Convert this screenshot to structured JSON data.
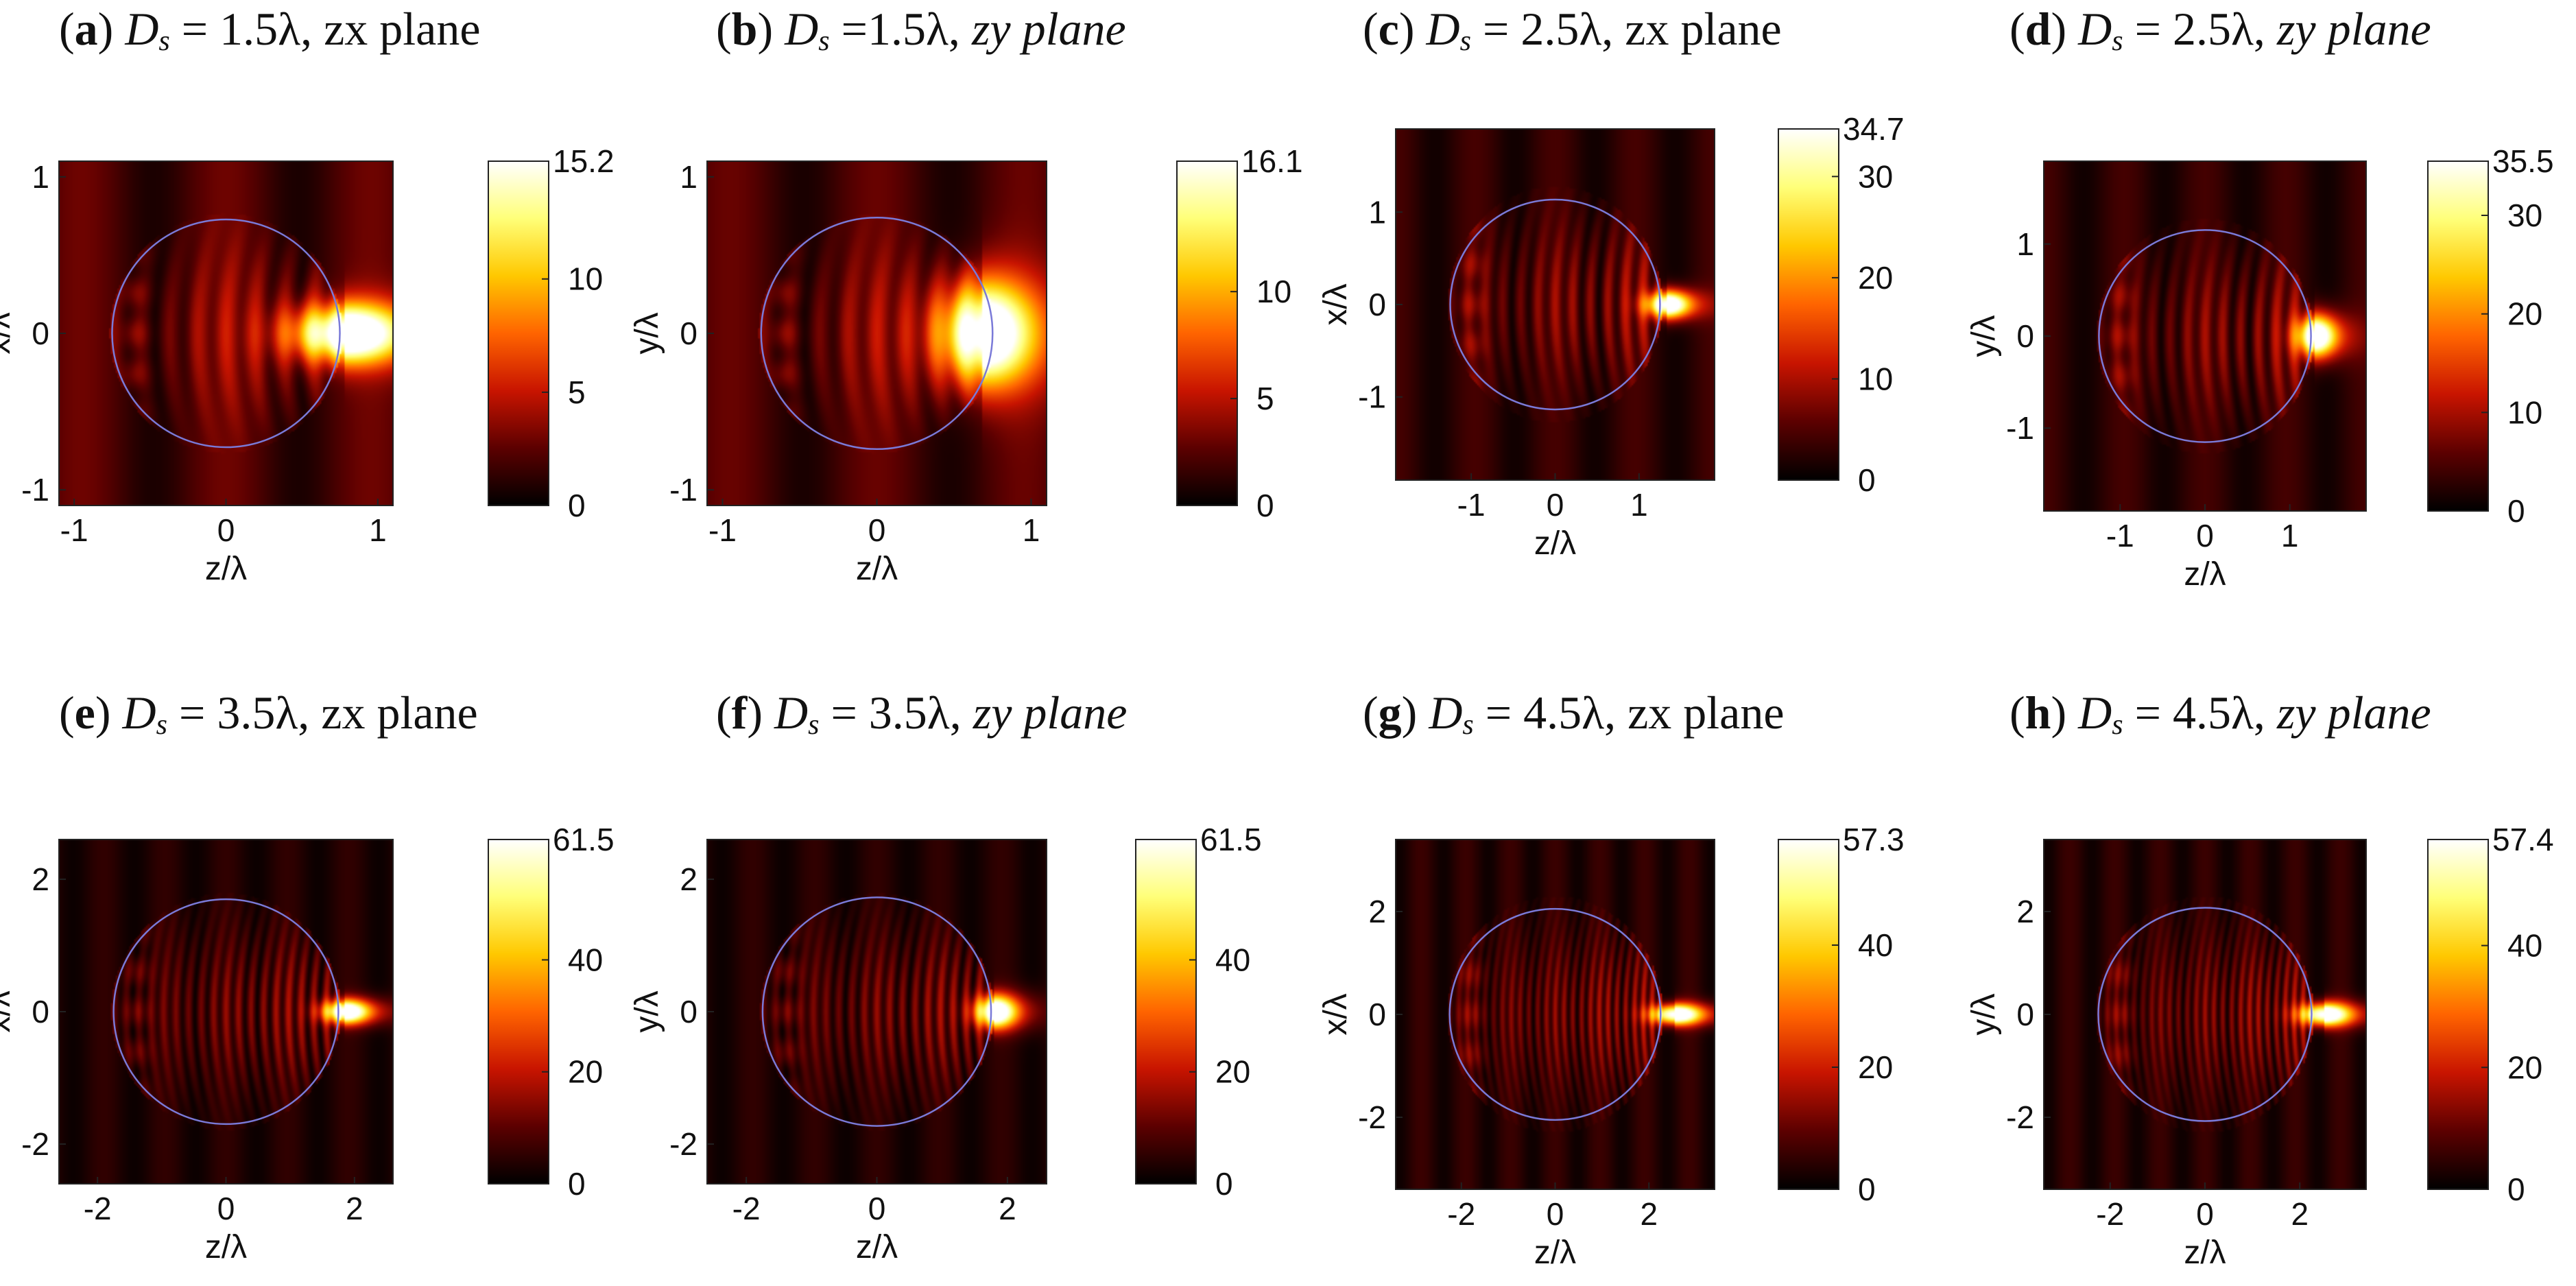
{
  "colormap": [
    "#000000",
    "#5c0000",
    "#c81400",
    "#ff6400",
    "#ffc800",
    "#ffff78",
    "#ffffff"
  ],
  "circle_color": "#7a7ad8",
  "chart_data": [
    {
      "id": "a",
      "type": "heatmap",
      "title": {
        "letter": "a",
        "ds_value": "= 1.5λ,",
        "plane": "zx plane",
        "italic_plane": false
      },
      "xlabel": "z/λ",
      "ylabel": "x/λ",
      "xlim": [
        -1.1,
        1.1
      ],
      "ylim": [
        -1.1,
        1.1
      ],
      "xticks": [
        -1,
        0,
        1
      ],
      "xtick_labels": [
        "-1",
        "0",
        "1"
      ],
      "yticks": [
        -1,
        0,
        1
      ],
      "ytick_labels": [
        "-1",
        "0",
        "1"
      ],
      "sphere_radius": 0.75,
      "colorbar": {
        "min": 0,
        "max": 15.2,
        "ticks": [
          0,
          5,
          10
        ],
        "tick_labels": [
          "0",
          "5",
          "10"
        ],
        "max_label": "15.2"
      },
      "field": {
        "focus_z": 0.78,
        "focus_peak": 15.2,
        "focus_wz": 0.34,
        "focus_wx": 0.17,
        "fringe_count": 4,
        "background": 2.2
      }
    },
    {
      "id": "b",
      "type": "heatmap",
      "title": {
        "letter": "b",
        "ds_value": "=1.5λ,",
        "plane": "zy plane",
        "italic_plane": true
      },
      "xlabel": "z/λ",
      "ylabel": "y/λ",
      "xlim": [
        -1.1,
        1.1
      ],
      "ylim": [
        -1.1,
        1.1
      ],
      "xticks": [
        -1,
        0,
        1
      ],
      "xtick_labels": [
        "-1",
        "0",
        "1"
      ],
      "yticks": [
        -1,
        0,
        1
      ],
      "ytick_labels": [
        "-1",
        "0",
        "1"
      ],
      "sphere_radius": 0.75,
      "colorbar": {
        "min": 0,
        "max": 16.1,
        "ticks": [
          0,
          5,
          10
        ],
        "tick_labels": [
          "0",
          "5",
          "10"
        ],
        "max_label": "16.1"
      },
      "field": {
        "focus_z": 0.68,
        "focus_peak": 16.1,
        "focus_wz": 0.28,
        "focus_wx": 0.3,
        "fringe_count": 4,
        "background": 2.2
      }
    },
    {
      "id": "c",
      "type": "heatmap",
      "title": {
        "letter": "c",
        "ds_value": "= 2.5λ,",
        "plane": "zx plane",
        "italic_plane": false
      },
      "xlabel": "z/λ",
      "ylabel": "x/λ",
      "xlim": [
        -1.9,
        1.9
      ],
      "ylim": [
        -1.9,
        1.9
      ],
      "xticks": [
        -1,
        0,
        1
      ],
      "xtick_labels": [
        "-1",
        "0",
        "1"
      ],
      "yticks": [
        -1,
        0,
        1
      ],
      "ytick_labels": [
        "-1",
        "0",
        "1"
      ],
      "sphere_radius": 1.25,
      "colorbar": {
        "min": 0,
        "max": 34.7,
        "ticks": [
          0,
          10,
          20,
          30
        ],
        "tick_labels": [
          "0",
          "10",
          "20",
          "30"
        ],
        "max_label": "34.7"
      },
      "field": {
        "focus_z": 1.33,
        "focus_peak": 34.7,
        "focus_wz": 0.24,
        "focus_wx": 0.13,
        "fringe_count": 6,
        "background": 3.0
      }
    },
    {
      "id": "d",
      "type": "heatmap",
      "title": {
        "letter": "d",
        "ds_value": "= 2.5λ,",
        "plane": "zy plane",
        "italic_plane": true
      },
      "xlabel": "z/λ",
      "ylabel": "y/λ",
      "xlim": [
        -1.9,
        1.9
      ],
      "ylim": [
        -1.9,
        1.9
      ],
      "xticks": [
        -1,
        0,
        1
      ],
      "xtick_labels": [
        "-1",
        "0",
        "1"
      ],
      "yticks": [
        -1,
        0,
        1
      ],
      "ytick_labels": [
        "-1",
        "0",
        "1"
      ],
      "sphere_radius": 1.25,
      "colorbar": {
        "min": 0,
        "max": 35.5,
        "ticks": [
          0,
          10,
          20,
          30
        ],
        "tick_labels": [
          "0",
          "10",
          "20",
          "30"
        ],
        "max_label": "35.5"
      },
      "field": {
        "focus_z": 1.3,
        "focus_peak": 35.5,
        "focus_wz": 0.22,
        "focus_wx": 0.2,
        "fringe_count": 6,
        "background": 3.0
      }
    },
    {
      "id": "e",
      "type": "heatmap",
      "title": {
        "letter": "e",
        "ds_value": "= 3.5λ,",
        "plane": "zx plane",
        "italic_plane": false
      },
      "xlabel": "z/λ",
      "ylabel": "x/λ",
      "xlim": [
        -2.6,
        2.6
      ],
      "ylim": [
        -2.6,
        2.6
      ],
      "xticks": [
        -2,
        0,
        2
      ],
      "xtick_labels": [
        "-2",
        "0",
        "2"
      ],
      "yticks": [
        -2,
        0,
        2
      ],
      "ytick_labels": [
        "-2",
        "0",
        "2"
      ],
      "sphere_radius": 1.75,
      "colorbar": {
        "min": 0,
        "max": 61.5,
        "ticks": [
          0,
          20,
          40
        ],
        "tick_labels": [
          "0",
          "20",
          "40"
        ],
        "max_label": "61.5"
      },
      "field": {
        "focus_z": 1.85,
        "focus_peak": 61.5,
        "focus_wz": 0.34,
        "focus_wx": 0.16,
        "fringe_count": 9,
        "background": 3.5
      }
    },
    {
      "id": "f",
      "type": "heatmap",
      "title": {
        "letter": "f",
        "ds_value": "= 3.5λ,",
        "plane": "zy plane",
        "italic_plane": true
      },
      "xlabel": "z/λ",
      "ylabel": "y/λ",
      "xlim": [
        -2.6,
        2.6
      ],
      "ylim": [
        -2.6,
        2.6
      ],
      "xticks": [
        -2,
        0,
        2
      ],
      "xtick_labels": [
        "-2",
        "0",
        "2"
      ],
      "yticks": [
        -2,
        0,
        2
      ],
      "ytick_labels": [
        "-2",
        "0",
        "2"
      ],
      "sphere_radius": 1.75,
      "colorbar": {
        "min": 0,
        "max": 61.5,
        "ticks": [
          0,
          20,
          40
        ],
        "tick_labels": [
          "0",
          "20",
          "40"
        ],
        "max_label": "61.5"
      },
      "field": {
        "focus_z": 1.8,
        "focus_peak": 61.5,
        "focus_wz": 0.3,
        "focus_wx": 0.22,
        "fringe_count": 9,
        "background": 3.5
      }
    },
    {
      "id": "g",
      "type": "heatmap",
      "title": {
        "letter": "g",
        "ds_value": "= 4.5λ,",
        "plane": "zx plane",
        "italic_plane": false
      },
      "xlabel": "z/λ",
      "ylabel": "x/λ",
      "xlim": [
        -3.4,
        3.4
      ],
      "ylim": [
        -3.4,
        3.4
      ],
      "xticks": [
        -2,
        0,
        2
      ],
      "xtick_labels": [
        "-2",
        "0",
        "2"
      ],
      "yticks": [
        -2,
        0,
        2
      ],
      "ytick_labels": [
        "-2",
        "0",
        "2"
      ],
      "sphere_radius": 2.25,
      "colorbar": {
        "min": 0,
        "max": 57.3,
        "ticks": [
          0,
          20,
          40
        ],
        "tick_labels": [
          "0",
          "20",
          "40"
        ],
        "max_label": "57.3"
      },
      "field": {
        "focus_z": 2.55,
        "focus_peak": 57.3,
        "focus_wz": 0.5,
        "focus_wx": 0.18,
        "fringe_count": 12,
        "background": 4.0
      }
    },
    {
      "id": "h",
      "type": "heatmap",
      "title": {
        "letter": "h",
        "ds_value": "= 4.5λ,",
        "plane": "zy plane",
        "italic_plane": true
      },
      "xlabel": "z/λ",
      "ylabel": "y/λ",
      "xlim": [
        -3.4,
        3.4
      ],
      "ylim": [
        -3.4,
        3.4
      ],
      "xticks": [
        -2,
        0,
        2
      ],
      "xtick_labels": [
        "-2",
        "0",
        "2"
      ],
      "yticks": [
        -2,
        0,
        2
      ],
      "ytick_labels": [
        "-2",
        "0",
        "2"
      ],
      "sphere_radius": 2.25,
      "colorbar": {
        "min": 0,
        "max": 57.4,
        "ticks": [
          0,
          20,
          40
        ],
        "tick_labels": [
          "0",
          "20",
          "40"
        ],
        "max_label": "57.4"
      },
      "field": {
        "focus_z": 2.5,
        "focus_peak": 57.4,
        "focus_wz": 0.5,
        "focus_wx": 0.2,
        "fringe_count": 12,
        "background": 4.0
      }
    }
  ]
}
